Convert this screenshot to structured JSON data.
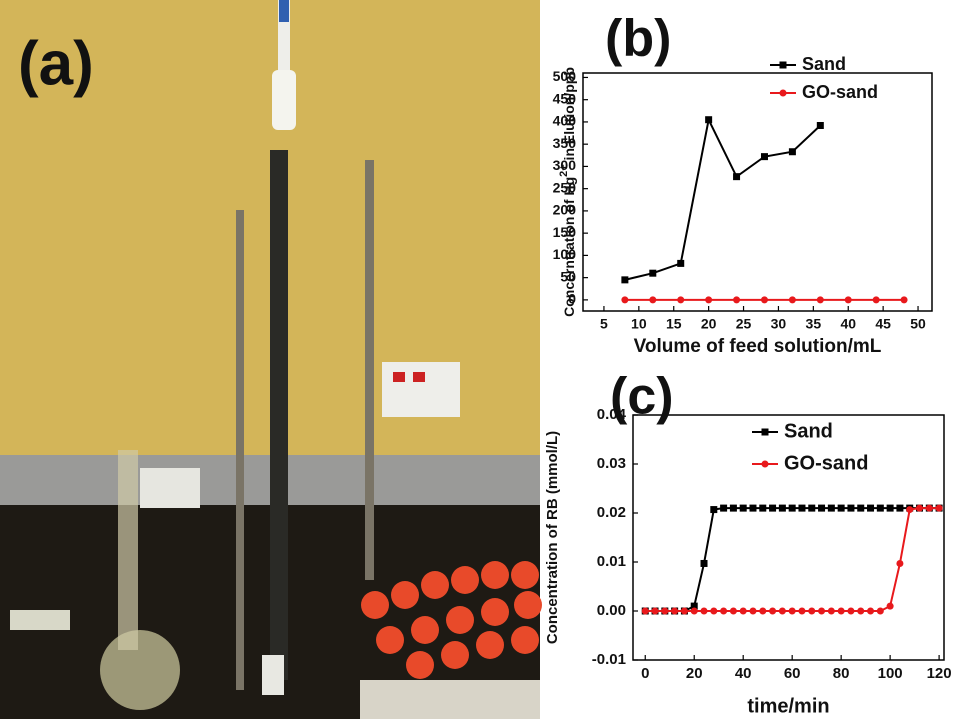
{
  "photo": {
    "label": "(a)"
  },
  "chart_data": [
    {
      "type": "line",
      "title": "(b)",
      "xlabel": "Volume of feed solution/mL",
      "ylabel": "Concerntration of Hg",
      "ylabel_sup": "2+",
      "ylabel_end": " in Elution/ppb",
      "xlim": [
        2,
        52
      ],
      "xticks": [
        5,
        10,
        15,
        20,
        25,
        30,
        35,
        40,
        45,
        50
      ],
      "ylim": [
        -25,
        510
      ],
      "yticks": [
        0,
        50,
        100,
        150,
        200,
        250,
        300,
        350,
        400,
        450,
        500
      ],
      "legend": "upper right",
      "series": [
        {
          "name": "Sand",
          "color": "#000000",
          "marker": "square",
          "x": [
            8,
            12,
            16,
            20,
            24,
            28,
            32,
            36
          ],
          "values": [
            45,
            60,
            82,
            405,
            277,
            322,
            333,
            392
          ]
        },
        {
          "name": "GO-sand",
          "color": "#e8191c",
          "marker": "circle",
          "x": [
            8,
            12,
            16,
            20,
            24,
            28,
            32,
            36,
            40,
            44,
            48
          ],
          "values": [
            0,
            0,
            0,
            0,
            0,
            0,
            0,
            0,
            0,
            0,
            0
          ]
        }
      ]
    },
    {
      "type": "line",
      "title": "(c)",
      "xlabel": "time/min",
      "ylabel": "Concentration of RB (mmol/L)",
      "xlim": [
        -5,
        122
      ],
      "xticks": [
        0,
        20,
        40,
        60,
        80,
        100,
        120
      ],
      "ylim": [
        -0.01,
        0.04
      ],
      "yticks": [
        -0.01,
        {
          "value": 0,
          "label": "0.00"
        },
        0.01,
        0.02,
        0.03,
        0.04
      ],
      "legend": "upper right",
      "series": [
        {
          "name": "Sand",
          "color": "#000000",
          "marker": "square",
          "x": [
            0,
            4,
            8,
            12,
            16,
            20,
            24,
            28,
            32,
            36,
            40,
            44,
            48,
            52,
            56,
            60,
            64,
            68,
            72,
            76,
            80,
            84,
            88,
            92,
            96,
            100,
            104,
            108,
            112,
            116,
            120
          ],
          "values": [
            0,
            0,
            0,
            0,
            0,
            0.001,
            0.0097,
            0.0207,
            0.021,
            0.021,
            0.021,
            0.021,
            0.021,
            0.021,
            0.021,
            0.021,
            0.021,
            0.021,
            0.021,
            0.021,
            0.021,
            0.021,
            0.021,
            0.021,
            0.021,
            0.021,
            0.021,
            0.021,
            0.021,
            0.021,
            0.021
          ]
        },
        {
          "name": "GO-sand",
          "color": "#e8191c",
          "marker": "circle",
          "x": [
            0,
            4,
            8,
            12,
            16,
            20,
            24,
            28,
            32,
            36,
            40,
            44,
            48,
            52,
            56,
            60,
            64,
            68,
            72,
            76,
            80,
            84,
            88,
            92,
            96,
            100,
            104,
            108,
            112,
            116,
            120
          ],
          "values": [
            0,
            0,
            0,
            0,
            0,
            0,
            0,
            0,
            0,
            0,
            0,
            0,
            0,
            0,
            0,
            0,
            0,
            0,
            0,
            0,
            0,
            0,
            0,
            0,
            0,
            0.001,
            0.0097,
            0.0207,
            0.021,
            0.021,
            0.021
          ]
        }
      ]
    }
  ]
}
